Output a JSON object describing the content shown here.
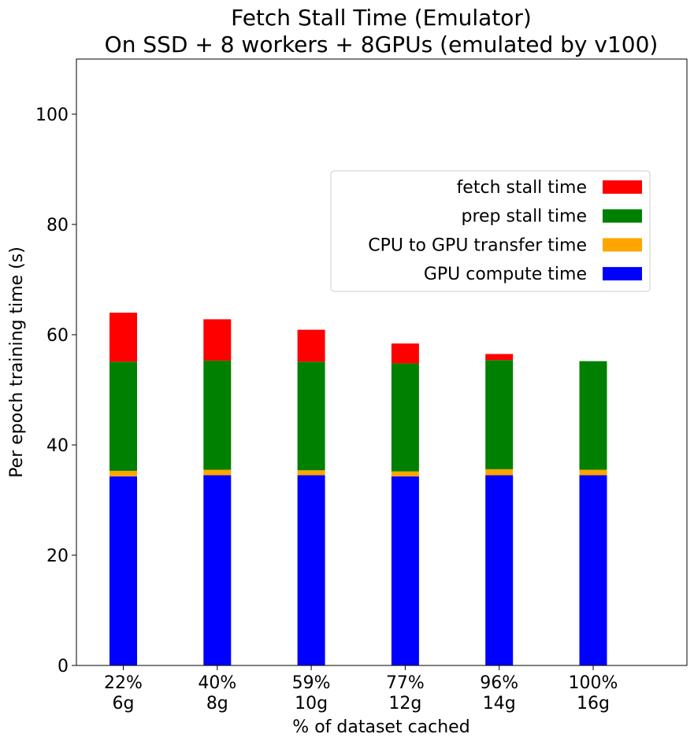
{
  "chart_data": {
    "type": "bar",
    "stacked": true,
    "title_line1": "Fetch Stall Time (Emulator)",
    "title_line2": "On SSD + 8 workers + 8GPUs (emulated by v100)",
    "xlabel": "% of dataset cached",
    "ylabel": "Per epoch training time (s)",
    "ylim": [
      0,
      110
    ],
    "yticks": [
      0,
      20,
      40,
      60,
      80,
      100
    ],
    "categories": [
      {
        "pct": "22%",
        "size": "6g"
      },
      {
        "pct": "40%",
        "size": "8g"
      },
      {
        "pct": "59%",
        "size": "10g"
      },
      {
        "pct": "77%",
        "size": "12g"
      },
      {
        "pct": "96%",
        "size": "14g"
      },
      {
        "pct": "100%",
        "size": "16g"
      }
    ],
    "series": [
      {
        "name": "GPU compute time",
        "color": "#0000ff",
        "values": [
          34.3,
          34.5,
          34.5,
          34.3,
          34.5,
          34.5
        ]
      },
      {
        "name": "CPU to GPU transfer time",
        "color": "#ffa500",
        "values": [
          1.0,
          1.0,
          0.9,
          0.9,
          1.1,
          1.0
        ]
      },
      {
        "name": "prep stall time",
        "color": "#008000",
        "values": [
          19.8,
          19.8,
          19.7,
          19.6,
          19.8,
          19.7
        ]
      },
      {
        "name": "fetch stall time",
        "color": "#ff0000",
        "values": [
          8.9,
          7.5,
          5.8,
          3.6,
          1.1,
          0
        ]
      }
    ],
    "legend_order": [
      "fetch stall time",
      "prep stall time",
      "CPU to GPU transfer time",
      "GPU compute time"
    ],
    "legend_position": "center-right",
    "grid": false
  }
}
